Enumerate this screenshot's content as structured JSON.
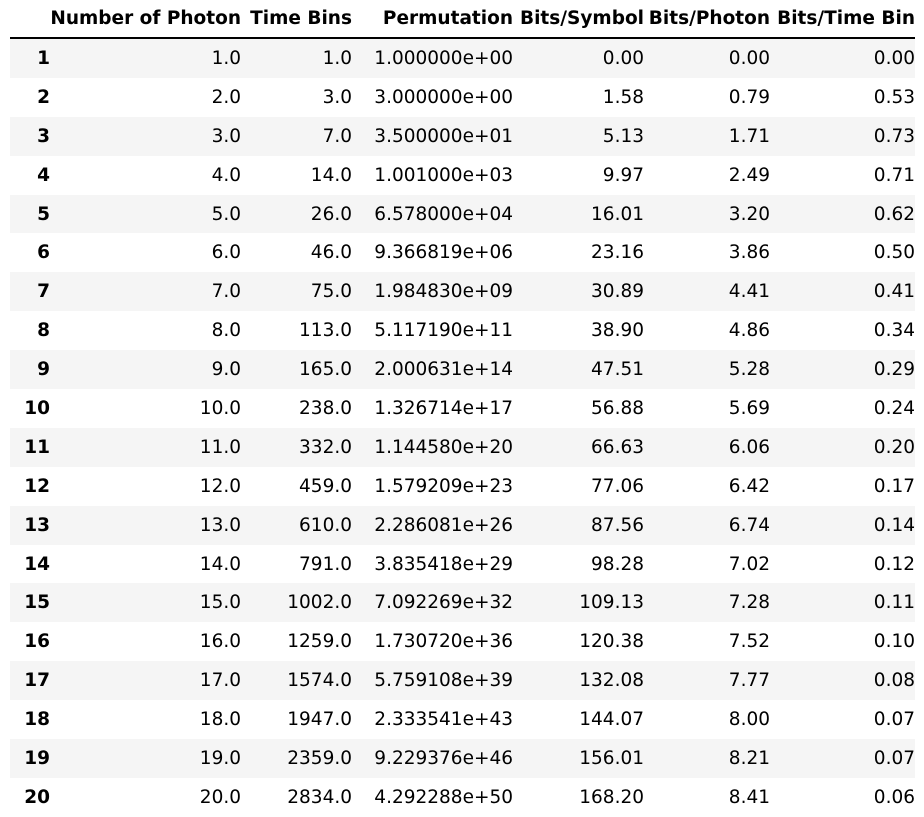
{
  "table": {
    "columns": [
      "",
      "Number of Photon",
      "Time Bins",
      "Permutation",
      "Bits/Symbol",
      "Bits/Photon",
      "Bits/Time Bin"
    ],
    "rows": [
      [
        "1",
        "1.0",
        "1.0",
        "1.000000e+00",
        "0.00",
        "0.00",
        "0.00"
      ],
      [
        "2",
        "2.0",
        "3.0",
        "3.000000e+00",
        "1.58",
        "0.79",
        "0.53"
      ],
      [
        "3",
        "3.0",
        "7.0",
        "3.500000e+01",
        "5.13",
        "1.71",
        "0.73"
      ],
      [
        "4",
        "4.0",
        "14.0",
        "1.001000e+03",
        "9.97",
        "2.49",
        "0.71"
      ],
      [
        "5",
        "5.0",
        "26.0",
        "6.578000e+04",
        "16.01",
        "3.20",
        "0.62"
      ],
      [
        "6",
        "6.0",
        "46.0",
        "9.366819e+06",
        "23.16",
        "3.86",
        "0.50"
      ],
      [
        "7",
        "7.0",
        "75.0",
        "1.984830e+09",
        "30.89",
        "4.41",
        "0.41"
      ],
      [
        "8",
        "8.0",
        "113.0",
        "5.117190e+11",
        "38.90",
        "4.86",
        "0.34"
      ],
      [
        "9",
        "9.0",
        "165.0",
        "2.000631e+14",
        "47.51",
        "5.28",
        "0.29"
      ],
      [
        "10",
        "10.0",
        "238.0",
        "1.326714e+17",
        "56.88",
        "5.69",
        "0.24"
      ],
      [
        "11",
        "11.0",
        "332.0",
        "1.144580e+20",
        "66.63",
        "6.06",
        "0.20"
      ],
      [
        "12",
        "12.0",
        "459.0",
        "1.579209e+23",
        "77.06",
        "6.42",
        "0.17"
      ],
      [
        "13",
        "13.0",
        "610.0",
        "2.286081e+26",
        "87.56",
        "6.74",
        "0.14"
      ],
      [
        "14",
        "14.0",
        "791.0",
        "3.835418e+29",
        "98.28",
        "7.02",
        "0.12"
      ],
      [
        "15",
        "15.0",
        "1002.0",
        "7.092269e+32",
        "109.13",
        "7.28",
        "0.11"
      ],
      [
        "16",
        "16.0",
        "1259.0",
        "1.730720e+36",
        "120.38",
        "7.52",
        "0.10"
      ],
      [
        "17",
        "17.0",
        "1574.0",
        "5.759108e+39",
        "132.08",
        "7.77",
        "0.08"
      ],
      [
        "18",
        "18.0",
        "1947.0",
        "2.333541e+43",
        "144.07",
        "8.00",
        "0.07"
      ],
      [
        "19",
        "19.0",
        "2359.0",
        "9.229376e+46",
        "156.01",
        "8.21",
        "0.07"
      ],
      [
        "20",
        "20.0",
        "2834.0",
        "4.292288e+50",
        "168.20",
        "8.41",
        "0.06"
      ]
    ]
  }
}
